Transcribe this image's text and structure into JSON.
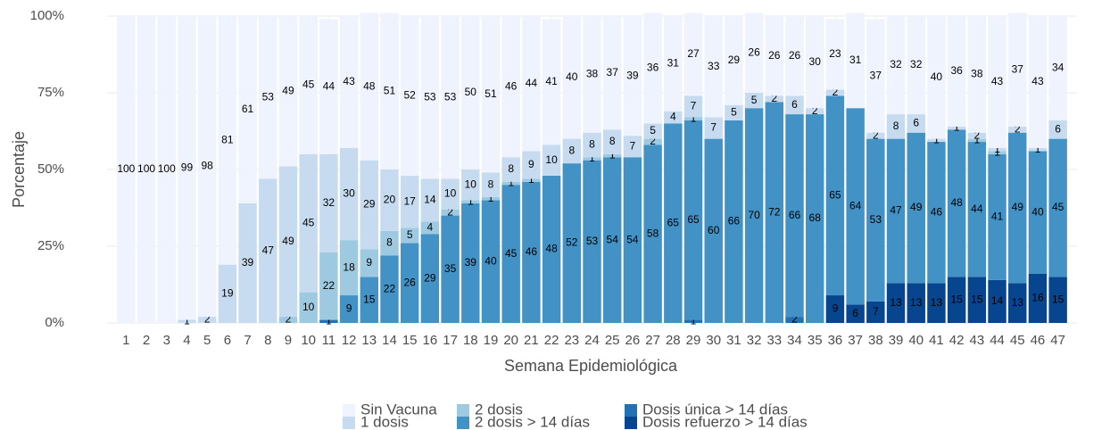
{
  "chart_data": {
    "type": "stacked_bar",
    "x_label": "Semana Epidemiológica",
    "y_label": "Porcentaje",
    "categories": [
      1,
      2,
      3,
      4,
      5,
      6,
      7,
      8,
      9,
      10,
      11,
      12,
      13,
      14,
      15,
      16,
      17,
      18,
      19,
      20,
      21,
      22,
      23,
      24,
      25,
      26,
      27,
      28,
      29,
      30,
      31,
      32,
      33,
      34,
      35,
      36,
      37,
      38,
      39,
      40,
      41,
      42,
      43,
      44,
      45,
      46,
      47
    ],
    "ylim": [
      0,
      100
    ],
    "yticks": [
      {
        "value": 0,
        "label": "0%"
      },
      {
        "value": 25,
        "label": "25%"
      },
      {
        "value": 50,
        "label": "50%"
      },
      {
        "value": 75,
        "label": "75%"
      },
      {
        "value": 100,
        "label": "100%"
      }
    ],
    "grid": true,
    "legend": "bottom",
    "series": [
      {
        "name": "Dosis refuerzo > 14 días",
        "color": "#08458f",
        "values": [
          null,
          null,
          null,
          null,
          null,
          null,
          null,
          null,
          null,
          null,
          null,
          null,
          null,
          null,
          null,
          null,
          null,
          null,
          null,
          null,
          null,
          null,
          null,
          null,
          null,
          null,
          null,
          null,
          null,
          null,
          null,
          null,
          null,
          null,
          null,
          9,
          6,
          7,
          13,
          13,
          13,
          15,
          15,
          14,
          13,
          16,
          15
        ]
      },
      {
        "name": "Dosis única > 14 días",
        "color": "#2171b5",
        "values": [
          null,
          null,
          null,
          null,
          null,
          null,
          null,
          null,
          null,
          null,
          1,
          null,
          null,
          null,
          null,
          null,
          null,
          null,
          null,
          null,
          null,
          null,
          null,
          null,
          null,
          null,
          null,
          null,
          1,
          null,
          null,
          null,
          null,
          2,
          null,
          null,
          null,
          null,
          null,
          null,
          null,
          null,
          null,
          null,
          null,
          null,
          null
        ]
      },
      {
        "name": "2 dosis > 14 días",
        "color": "#4292c6",
        "values": [
          null,
          null,
          null,
          null,
          null,
          null,
          null,
          null,
          null,
          null,
          null,
          9,
          15,
          22,
          26,
          29,
          35,
          39,
          40,
          45,
          46,
          48,
          52,
          53,
          54,
          54,
          58,
          65,
          65,
          60,
          66,
          70,
          72,
          66,
          68,
          65,
          64,
          53,
          47,
          49,
          46,
          48,
          44,
          41,
          49,
          40,
          45
        ]
      },
      {
        "name": "2 dosis",
        "color": "#9ecae1",
        "values": [
          null,
          null,
          null,
          null,
          null,
          null,
          null,
          null,
          2,
          10,
          22,
          18,
          9,
          8,
          5,
          4,
          2,
          1,
          1,
          1,
          1,
          null,
          null,
          1,
          1,
          null,
          2,
          null,
          1,
          null,
          null,
          null,
          null,
          null,
          null,
          null,
          null,
          null,
          null,
          null,
          null,
          null,
          1,
          1,
          null,
          null,
          null
        ]
      },
      {
        "name": "1 dosis",
        "color": "#c6dbef",
        "values": [
          null,
          null,
          null,
          1,
          2,
          19,
          39,
          47,
          49,
          45,
          32,
          30,
          29,
          20,
          17,
          14,
          10,
          10,
          8,
          8,
          9,
          10,
          8,
          8,
          8,
          7,
          5,
          4,
          7,
          7,
          5,
          5,
          2,
          6,
          2,
          2,
          null,
          2,
          8,
          6,
          1,
          1,
          2,
          1,
          2,
          1,
          6
        ]
      },
      {
        "name": "Sin Vacuna",
        "color": "#eef3fd",
        "values": [
          100,
          100,
          100,
          99,
          98,
          81,
          61,
          53,
          49,
          45,
          44,
          43,
          48,
          51,
          52,
          53,
          53,
          50,
          51,
          46,
          44,
          41,
          40,
          38,
          37,
          39,
          36,
          31,
          27,
          33,
          29,
          26,
          26,
          26,
          30,
          23,
          31,
          37,
          32,
          32,
          40,
          36,
          38,
          43,
          37,
          43,
          34
        ]
      }
    ]
  }
}
